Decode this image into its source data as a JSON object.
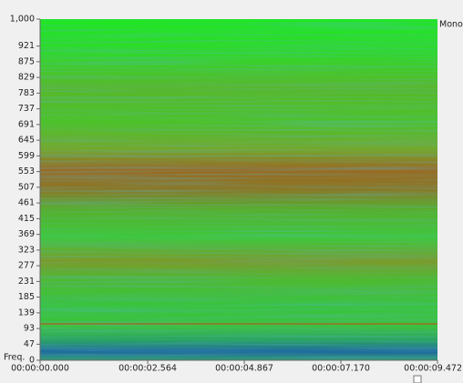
{
  "chart_data": {
    "type": "spectrogram",
    "y_label": "Freq.",
    "channel": "Mono",
    "ylim": [
      0,
      1000
    ],
    "yticks": [
      0,
      47,
      93,
      139,
      185,
      231,
      277,
      323,
      369,
      415,
      461,
      507,
      553,
      599,
      645,
      691,
      737,
      783,
      829,
      875,
      921,
      {
        "value": 1000,
        "label": "1,000"
      }
    ],
    "xlim": [
      0,
      9.472
    ],
    "xticks": [
      {
        "value": 0,
        "label": "00:00:00.000"
      },
      {
        "value": 2.564,
        "label": "00:00:02.564"
      },
      {
        "value": 4.867,
        "label": "00:00:04.867"
      },
      {
        "value": 7.17,
        "label": "00:00:07.170"
      },
      {
        "value": 9.472,
        "label": "00:00:09.472"
      }
    ]
  }
}
